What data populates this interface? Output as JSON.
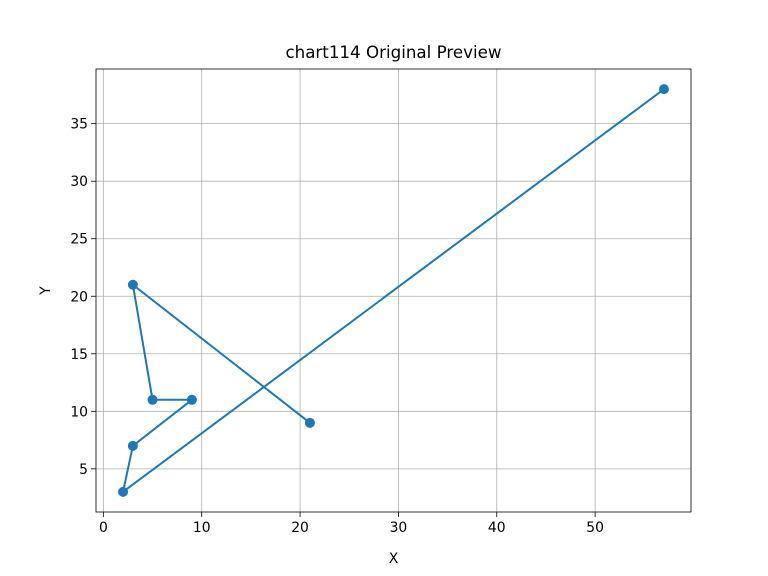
{
  "chart_data": {
    "type": "line",
    "title": "chart114 Original Preview",
    "xlabel": "X",
    "ylabel": "Y",
    "xlim": [
      -0.75,
      59.75
    ],
    "ylim": [
      1.25,
      39.75
    ],
    "xticks": [
      0,
      10,
      20,
      30,
      40,
      50
    ],
    "yticks": [
      5,
      10,
      15,
      20,
      25,
      30,
      35
    ],
    "grid": true,
    "markers": true,
    "series": [
      {
        "color": "#1f77b4",
        "x": [
          21,
          3,
          5,
          9,
          3,
          2,
          57
        ],
        "y": [
          9,
          21,
          11,
          11,
          7,
          3,
          38
        ]
      }
    ]
  }
}
